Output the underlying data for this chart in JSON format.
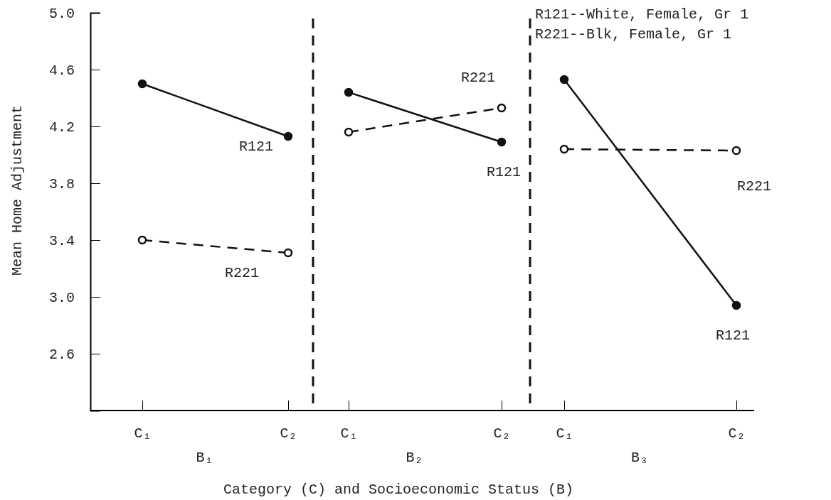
{
  "chart_data": [
    {
      "type": "line",
      "xlabel": "B₁",
      "ylabel": "Mean Home Adjustment",
      "categories": [
        "C₁",
        "C₂"
      ],
      "ylim": [
        2.2,
        5.0
      ],
      "yticks": [
        2.6,
        {
          "value": 3,
          "label": "3.0"
        },
        3.4,
        3.8,
        4.2,
        4.6,
        {
          "value": 5,
          "label": "5.0"
        }
      ],
      "marker": "circle",
      "series": [
        {
          "color": "#111111",
          "line_style": "solid",
          "values": [
            4.5,
            4.13
          ]
        },
        {
          "color": "#111111",
          "line_style": "dashed",
          "values": [
            3.4,
            3.31
          ]
        }
      ],
      "annotations": [
        "R121",
        "R221"
      ]
    },
    {
      "type": "line",
      "xlabel": "B₂",
      "categories": [
        "C₁",
        "C₂"
      ],
      "ylim": [
        2.2,
        5.0
      ],
      "tick_labels": "x",
      "marker": "circle",
      "series": [
        {
          "color": "#111111",
          "line_style": "solid",
          "values": [
            4.44,
            4.09
          ]
        },
        {
          "color": "#111111",
          "line_style": "dashed",
          "values": [
            4.16,
            4.33
          ]
        }
      ],
      "annotations": [
        "R221",
        "R121",
        "Category (C) and Socioeconomic Status (B)"
      ]
    },
    {
      "type": "line",
      "xlabel": "B₃",
      "categories": [
        "C₁",
        "C₂"
      ],
      "ylim": [
        2.2,
        5.0
      ],
      "tick_labels": "x",
      "marker": "circle",
      "series": [
        {
          "color": "#111111",
          "line_style": "solid",
          "values": [
            4.53,
            2.94
          ]
        },
        {
          "color": "#111111",
          "line_style": "dashed",
          "values": [
            4.04,
            4.03
          ]
        }
      ],
      "annotations": [
        "R221",
        "R121",
        "R121--White, Female, Gr 1",
        "R221--Blk, Female, Gr 1"
      ]
    }
  ]
}
